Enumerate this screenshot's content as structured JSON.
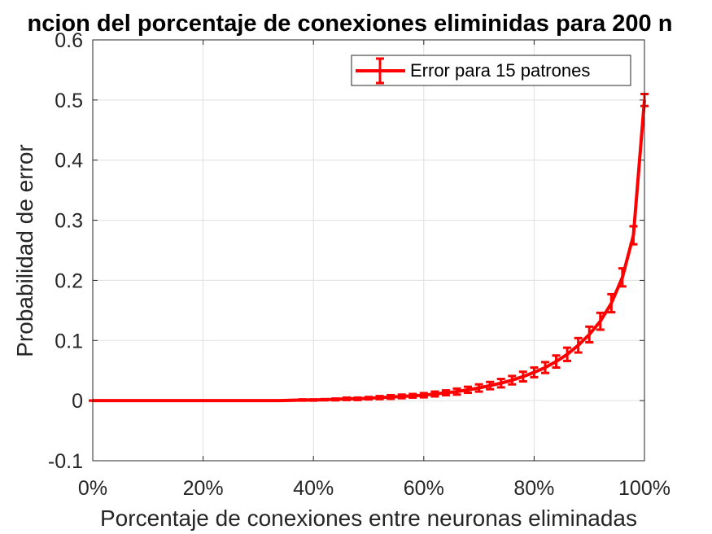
{
  "chart_data": {
    "type": "line",
    "title": "ncion del porcentaje de conexiones eliminidas para 200 n",
    "xlabel": "Porcentaje de conexiones entre neuronas eliminadas",
    "ylabel": "Probabilidad de error",
    "xlim": [
      0,
      100
    ],
    "ylim": [
      -0.1,
      0.6
    ],
    "xticks": [
      0,
      20,
      40,
      60,
      80,
      100
    ],
    "xtick_labels": [
      "0%",
      "20%",
      "40%",
      "60%",
      "80%",
      "100%"
    ],
    "yticks": [
      -0.1,
      0,
      0.1,
      0.2,
      0.3,
      0.4,
      0.5,
      0.6
    ],
    "ytick_labels": [
      "-0.1",
      "0",
      "0.1",
      "0.2",
      "0.3",
      "0.4",
      "0.5",
      "0.6"
    ],
    "grid": true,
    "legend_position": "top-right",
    "series": [
      {
        "name": "Error para 15 patrones",
        "color": "#ff0000",
        "errorbars": true,
        "x": [
          0,
          2,
          4,
          6,
          8,
          10,
          12,
          14,
          16,
          18,
          20,
          22,
          24,
          26,
          28,
          30,
          32,
          34,
          36,
          38,
          40,
          42,
          44,
          46,
          48,
          50,
          52,
          54,
          56,
          58,
          60,
          62,
          64,
          66,
          68,
          70,
          72,
          74,
          76,
          78,
          80,
          82,
          84,
          86,
          88,
          90,
          92,
          94,
          96,
          98,
          100
        ],
        "y": [
          0,
          0,
          0,
          0,
          0,
          0,
          0,
          0,
          0,
          0,
          0,
          0,
          0,
          0,
          0,
          0,
          0,
          0,
          0.0005,
          0.001,
          0.001,
          0.0015,
          0.002,
          0.003,
          0.003,
          0.004,
          0.005,
          0.006,
          0.007,
          0.008,
          0.009,
          0.011,
          0.013,
          0.015,
          0.018,
          0.021,
          0.025,
          0.029,
          0.034,
          0.04,
          0.047,
          0.055,
          0.065,
          0.077,
          0.092,
          0.11,
          0.132,
          0.162,
          0.205,
          0.275,
          0.5
        ],
        "err": [
          0,
          0,
          0,
          0,
          0,
          0,
          0,
          0,
          0,
          0,
          0,
          0,
          0,
          0,
          0,
          0,
          0,
          0,
          0.0005,
          0.001,
          0.001,
          0.001,
          0.0015,
          0.002,
          0.002,
          0.002,
          0.0025,
          0.003,
          0.003,
          0.003,
          0.0035,
          0.004,
          0.004,
          0.005,
          0.005,
          0.006,
          0.006,
          0.007,
          0.007,
          0.008,
          0.008,
          0.009,
          0.01,
          0.011,
          0.012,
          0.013,
          0.014,
          0.015,
          0.015,
          0.015,
          0.01
        ]
      }
    ]
  }
}
